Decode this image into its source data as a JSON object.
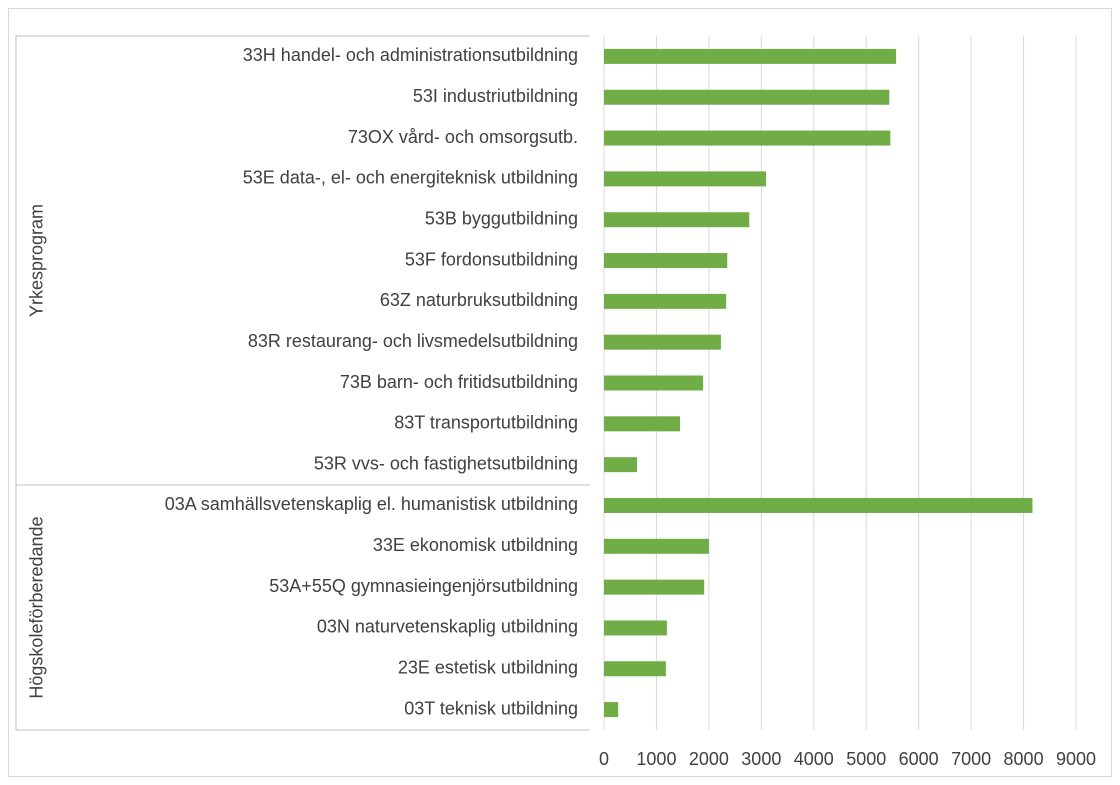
{
  "chart_data": {
    "type": "bar",
    "orientation": "horizontal",
    "color": "#70ad47",
    "groups": [
      {
        "label": "Yrkesprogram",
        "categories": [
          "33H handel- och administrationsutbildning",
          "53I industriutbildning",
          "73OX vård- och omsorgsutb.",
          "53E data-, el- och energiteknisk utbildning",
          "53B byggutbildning",
          "53F fordonsutbildning",
          "63Z naturbruksutbildning",
          "83R restaurang- och livsmedelsutbildning",
          "73B barn- och fritidsutbildning",
          "83T transportutbildning",
          "53R vvs- och fastighetsutbildning"
        ],
        "values": [
          5570,
          5440,
          5460,
          3090,
          2770,
          2350,
          2330,
          2230,
          1890,
          1450,
          630
        ]
      },
      {
        "label": "Högskoleförberedande",
        "categories": [
          "03A samhällsvetenskaplig el. humanistisk utbildning",
          "33E ekonomisk utbildning",
          "53A+55Q gymnasieingenjörsutbildning",
          "03N naturvetenskaplig utbildning",
          "23E estetisk utbildning",
          "03T teknisk utbildning"
        ],
        "values": [
          8170,
          2000,
          1910,
          1200,
          1180,
          270
        ]
      }
    ],
    "xlim": [
      0,
      9000
    ],
    "xticks": [
      0,
      1000,
      2000,
      3000,
      4000,
      5000,
      6000,
      7000,
      8000,
      9000
    ],
    "grid": true
  }
}
